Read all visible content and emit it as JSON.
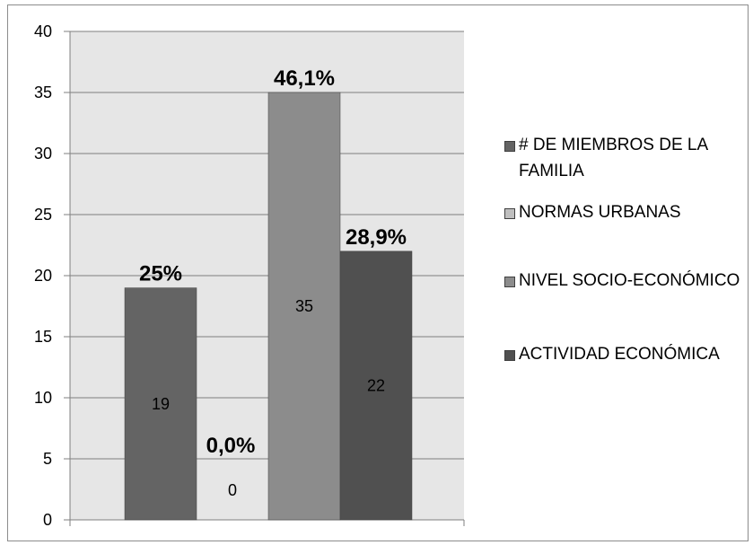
{
  "chart_data": {
    "type": "bar",
    "ylim": [
      0,
      40
    ],
    "y_ticks": [
      0,
      5,
      10,
      15,
      20,
      25,
      30,
      35,
      40
    ],
    "grid": true,
    "legend_position": "right",
    "series": [
      {
        "name": "# DE MIEMBROS DE LA FAMILIA",
        "value": 19,
        "value_label": "19",
        "percent_label": "25%",
        "color": "#646464"
      },
      {
        "name": "NORMAS URBANAS",
        "value": 0,
        "value_label": "0",
        "percent_label": "0,0%",
        "color": "#bfbfbf"
      },
      {
        "name": "NIVEL SOCIO-ECONÓMICO",
        "value": 35,
        "value_label": "35",
        "percent_label": "46,1%",
        "color": "#8c8c8c"
      },
      {
        "name": "ACTIVIDAD ECONÓMICA",
        "value": 22,
        "value_label": "22",
        "percent_label": "28,9%",
        "color": "#505050"
      }
    ],
    "plot_background": "#e6e6e6",
    "gridline_color": "#7f7f7f"
  }
}
